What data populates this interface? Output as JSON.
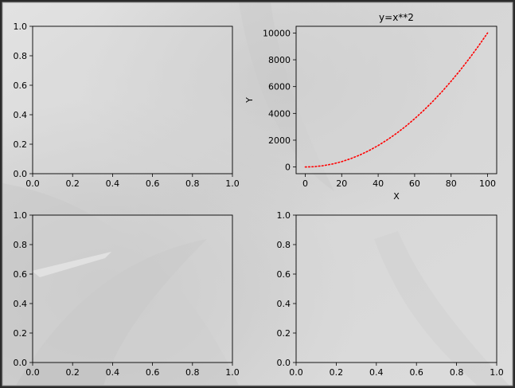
{
  "figure": {
    "background_color": "#d9d9d9",
    "mark_color": "#ff0000"
  },
  "chart_data": [
    {
      "type": "blank",
      "position": "top-left",
      "xlim": [
        0,
        1
      ],
      "ylim": [
        0,
        1
      ],
      "xticks": [
        "0.0",
        "0.2",
        "0.4",
        "0.6",
        "0.8",
        "1.0"
      ],
      "yticks": [
        "0.0",
        "0.2",
        "0.4",
        "0.6",
        "0.8",
        "1.0"
      ]
    },
    {
      "type": "line",
      "position": "top-right",
      "title": "y=x**2",
      "xlabel": "X",
      "ylabel": "Y",
      "xlim": [
        -5,
        105
      ],
      "ylim": [
        -500,
        10500
      ],
      "xticks": [
        "0",
        "20",
        "40",
        "60",
        "80",
        "100"
      ],
      "yticks": [
        "0",
        "2000",
        "4000",
        "6000",
        "8000",
        "10000"
      ],
      "line_style": "dotted",
      "grid": false,
      "series": [
        {
          "color": "#ff0000",
          "x": [
            0,
            5,
            10,
            15,
            20,
            25,
            30,
            35,
            40,
            45,
            50,
            55,
            60,
            65,
            70,
            75,
            80,
            85,
            90,
            95,
            100
          ],
          "y": [
            0,
            25,
            100,
            225,
            400,
            625,
            900,
            1225,
            1600,
            2025,
            2500,
            3025,
            3600,
            4225,
            4900,
            5625,
            6400,
            7225,
            8100,
            9025,
            10000
          ]
        }
      ]
    },
    {
      "type": "blank",
      "position": "bottom-left",
      "xlim": [
        0,
        1
      ],
      "ylim": [
        0,
        1
      ],
      "xticks": [
        "0.0",
        "0.2",
        "0.4",
        "0.6",
        "0.8",
        "1.0"
      ],
      "yticks": [
        "0.0",
        "0.2",
        "0.4",
        "0.6",
        "0.8",
        "1.0"
      ]
    },
    {
      "type": "blank",
      "position": "bottom-right",
      "xlim": [
        0,
        1
      ],
      "ylim": [
        0,
        1
      ],
      "xticks": [
        "0.0",
        "0.2",
        "0.4",
        "0.6",
        "0.8",
        "1.0"
      ],
      "yticks": [
        "0.0",
        "0.2",
        "0.4",
        "0.6",
        "0.8",
        "1.0"
      ]
    }
  ]
}
